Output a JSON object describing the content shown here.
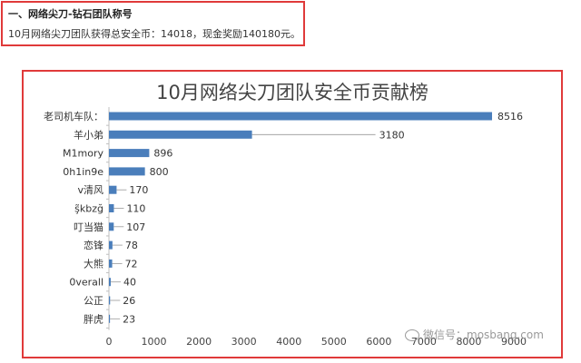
{
  "header": {
    "title": "一、网络尖刀-钻石团队称号",
    "description": "10月网络尖刀团队获得总安全币：14018，现金奖励140180元。"
  },
  "watermark": {
    "text": "微信号：mosbang.com",
    "icon": "wechat-icon"
  },
  "chart_data": {
    "type": "bar",
    "orientation": "horizontal",
    "title": "10月网络尖刀团队安全币贡献榜",
    "categories": [
      "老司机车队：",
      "羊小弟",
      "M1mory",
      "0h1in9e",
      "v清风",
      "ş̃kbzğ",
      "叮当猫",
      "恋锋",
      "大熊",
      "0verall",
      "公正",
      "胖虎"
    ],
    "values": [
      8516,
      3180,
      896,
      800,
      170,
      110,
      107,
      78,
      72,
      40,
      26,
      23
    ],
    "xlim": [
      0,
      9000
    ],
    "xticks": [
      0,
      1000,
      2000,
      3000,
      4000,
      5000,
      6000,
      7000,
      8000,
      9000
    ],
    "grid": false,
    "bar_color": "#4a7ebb",
    "data_labels": true
  }
}
